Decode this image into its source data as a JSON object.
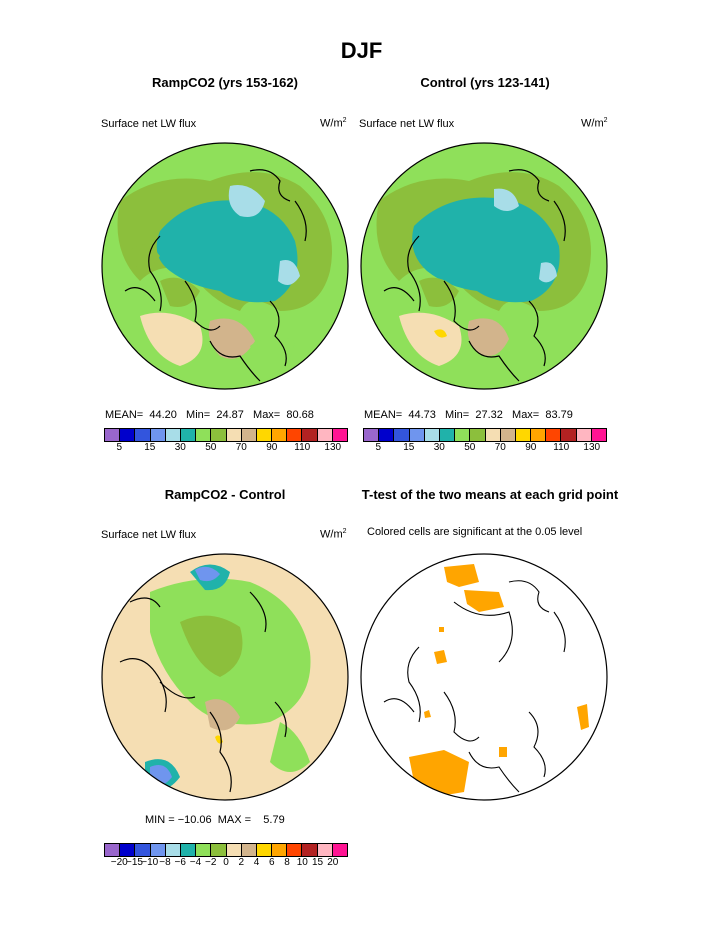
{
  "title": "DJF",
  "panels": [
    {
      "title": "RampCO2 (yrs 153-162)",
      "var": "Surface net LW flux",
      "units": "W/m",
      "units_sup": "2",
      "stats": {
        "mean_label": "MEAN=",
        "mean": "44.20",
        "min_label": "Min=",
        "min": "24.87",
        "max_label": "Max=",
        "max": "80.68"
      }
    },
    {
      "title": "Control (yrs 123-141)",
      "var": "Surface net LW flux",
      "units": "W/m",
      "units_sup": "2",
      "stats": {
        "mean_label": "MEAN=",
        "mean": "44.73",
        "min_label": "Min=",
        "min": "27.32",
        "max_label": "Max=",
        "max": "83.79"
      }
    },
    {
      "title": "RampCO2 - Control",
      "var": "Surface net LW flux",
      "units": "W/m",
      "units_sup": "2",
      "stats_text": "MIN = −10.06  MAX =    5.79"
    },
    {
      "title": "T-test of the two means at each grid point",
      "var": "Colored cells are significant at the 0.05 level"
    }
  ],
  "legend_abs": {
    "colors": [
      "#9966cc",
      "#0000cc",
      "#3355dd",
      "#6f95ee",
      "#a8dde8",
      "#20b2aa",
      "#8fe05a",
      "#8cbf3c",
      "#f5deb3",
      "#d2b48c",
      "#ffd700",
      "#ffa500",
      "#ff4500",
      "#b22222",
      "#ffb6c1",
      "#ff1493"
    ],
    "labels": [
      "5",
      "15",
      "30",
      "50",
      "70",
      "90",
      "110",
      "130"
    ]
  },
  "legend_diff": {
    "colors": [
      "#9966cc",
      "#0000cc",
      "#3355dd",
      "#6f95ee",
      "#a8dde8",
      "#20b2aa",
      "#8fe05a",
      "#8cbf3c",
      "#f5deb3",
      "#d2b48c",
      "#ffd700",
      "#ffa500",
      "#ff4500",
      "#b22222",
      "#ffb6c1",
      "#ff1493"
    ],
    "labels": [
      "−20",
      "−15",
      "−10",
      "−8",
      "−6",
      "−4",
      "−2",
      "0",
      "2",
      "4",
      "6",
      "8",
      "10",
      "15",
      "20"
    ]
  }
}
